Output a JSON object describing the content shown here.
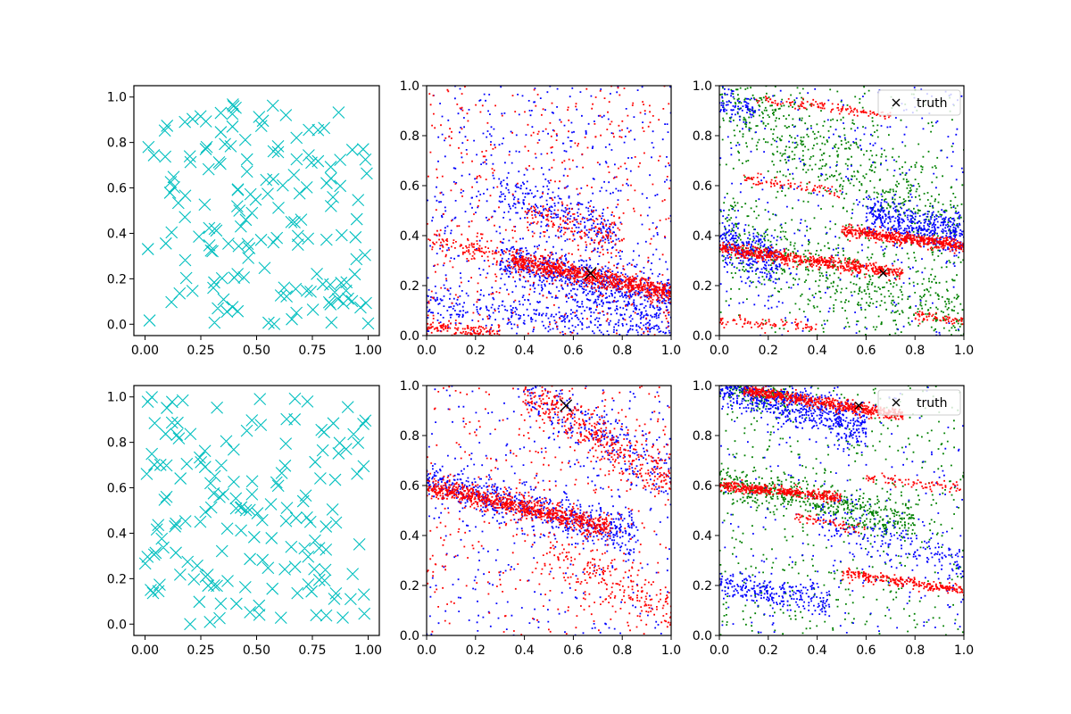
{
  "figure": {
    "colors": {
      "cyan": "#00bfbf",
      "blue": "#0000ff",
      "red": "#ff0000",
      "green": "#008000",
      "black": "#000000"
    }
  },
  "chart_data": [
    {
      "panel": "top-left",
      "type": "scatter",
      "marker": "x",
      "xlim": [
        -0.05,
        1.05
      ],
      "ylim": [
        -0.05,
        1.05
      ],
      "xticks": [
        "0.00",
        "0.25",
        "0.50",
        "0.75",
        "1.00"
      ],
      "yticks": [
        "0.0",
        "0.2",
        "0.4",
        "0.6",
        "0.8",
        "1.0"
      ],
      "series": [
        {
          "color": "#00bfbf",
          "count": 160,
          "distribution": "uniform on [0,1]x[0,1]"
        }
      ]
    },
    {
      "panel": "top-middle",
      "type": "scatter",
      "marker": "dot",
      "xlim": [
        0,
        1
      ],
      "ylim": [
        0,
        1
      ],
      "xticks": [
        "0.0",
        "0.2",
        "0.4",
        "0.6",
        "0.8",
        "1.0"
      ],
      "yticks": [
        "0.0",
        "0.2",
        "0.4",
        "0.6",
        "0.8",
        "1.0"
      ],
      "series": [
        {
          "color": "#0000ff",
          "bands": [
            {
              "x": [
                0.3,
                1.0
              ],
              "y_start": 0.3,
              "y_end": 0.13,
              "spread": 0.05,
              "n": 700
            },
            {
              "x": [
                0.0,
                1.0
              ],
              "y_start": 0.12,
              "y_end": 0.02,
              "spread": 0.04,
              "n": 350
            },
            {
              "x": [
                0.3,
                0.8
              ],
              "y_start": 0.58,
              "y_end": 0.4,
              "spread": 0.05,
              "n": 250
            }
          ],
          "background": 500
        },
        {
          "color": "#ff0000",
          "bands": [
            {
              "x": [
                0.35,
                1.0
              ],
              "y_start": 0.3,
              "y_end": 0.17,
              "spread": 0.02,
              "n": 800
            },
            {
              "x": [
                0.0,
                0.4
              ],
              "y_start": 0.38,
              "y_end": 0.3,
              "spread": 0.02,
              "n": 120
            },
            {
              "x": [
                0.0,
                0.3
              ],
              "y_start": 0.04,
              "y_end": 0.0,
              "spread": 0.015,
              "n": 150
            },
            {
              "x": [
                0.4,
                0.8
              ],
              "y_start": 0.48,
              "y_end": 0.4,
              "spread": 0.04,
              "n": 150
            }
          ],
          "background": 450
        }
      ],
      "truth": {
        "x": 0.67,
        "y": 0.25,
        "size": "large"
      }
    },
    {
      "panel": "top-right",
      "type": "scatter",
      "marker": "dot",
      "xlim": [
        0,
        1
      ],
      "ylim": [
        0,
        1
      ],
      "xticks": [
        "0.0",
        "0.2",
        "0.4",
        "0.6",
        "0.8",
        "1.0"
      ],
      "yticks": [
        "0.0",
        "0.2",
        "0.4",
        "0.6",
        "0.8",
        "1.0"
      ],
      "legend": {
        "label": "truth",
        "position": "upper right"
      },
      "series": [
        {
          "color": "#008000",
          "bands": [
            {
              "x": [
                0.0,
                1.0
              ],
              "y_start": 0.95,
              "y_end": 0.4,
              "spread": 0.1,
              "n": 600
            },
            {
              "x": [
                0.0,
                1.0
              ],
              "y_start": 0.4,
              "y_end": 0.05,
              "spread": 0.08,
              "n": 500
            }
          ],
          "background": 300
        },
        {
          "color": "#0000ff",
          "bands": [
            {
              "x": [
                0.6,
                1.0
              ],
              "y_start": 0.48,
              "y_end": 0.4,
              "spread": 0.04,
              "n": 450
            },
            {
              "x": [
                0.0,
                0.25
              ],
              "y_start": 0.38,
              "y_end": 0.28,
              "spread": 0.05,
              "n": 300
            },
            {
              "x": [
                0.0,
                0.15
              ],
              "y_start": 0.95,
              "y_end": 0.88,
              "spread": 0.03,
              "n": 80
            }
          ],
          "background": 300
        },
        {
          "color": "#ff0000",
          "bands": [
            {
              "x": [
                0.0,
                0.75
              ],
              "y_start": 0.35,
              "y_end": 0.25,
              "spread": 0.012,
              "n": 600
            },
            {
              "x": [
                0.5,
                1.0
              ],
              "y_start": 0.42,
              "y_end": 0.36,
              "spread": 0.012,
              "n": 500
            },
            {
              "x": [
                0.15,
                0.7
              ],
              "y_start": 0.95,
              "y_end": 0.88,
              "spread": 0.01,
              "n": 120
            },
            {
              "x": [
                0.1,
                0.5
              ],
              "y_start": 0.63,
              "y_end": 0.57,
              "spread": 0.01,
              "n": 80
            },
            {
              "x": [
                0.0,
                0.4
              ],
              "y_start": 0.06,
              "y_end": 0.03,
              "spread": 0.01,
              "n": 80
            },
            {
              "x": [
                0.8,
                1.0
              ],
              "y_start": 0.08,
              "y_end": 0.06,
              "spread": 0.01,
              "n": 60
            }
          ],
          "background": 0
        }
      ],
      "truth": {
        "x": 0.67,
        "y": 0.25,
        "size": "small"
      }
    },
    {
      "panel": "bottom-left",
      "type": "scatter",
      "marker": "x",
      "xlim": [
        -0.05,
        1.05
      ],
      "ylim": [
        -0.05,
        1.05
      ],
      "xticks": [
        "0.00",
        "0.25",
        "0.50",
        "0.75",
        "1.00"
      ],
      "yticks": [
        "0.0",
        "0.2",
        "0.4",
        "0.6",
        "0.8",
        "1.0"
      ],
      "series": [
        {
          "color": "#00bfbf",
          "count": 160,
          "distribution": "uniform on [0,1]x[0,1]"
        }
      ]
    },
    {
      "panel": "bottom-middle",
      "type": "scatter",
      "marker": "dot",
      "xlim": [
        0,
        1
      ],
      "ylim": [
        0,
        1
      ],
      "xticks": [
        "0.0",
        "0.2",
        "0.4",
        "0.6",
        "0.8",
        "1.0"
      ],
      "yticks": [
        "0.0",
        "0.2",
        "0.4",
        "0.6",
        "0.8",
        "1.0"
      ],
      "series": [
        {
          "color": "#0000ff",
          "bands": [
            {
              "x": [
                0.0,
                0.85
              ],
              "y_start": 0.62,
              "y_end": 0.4,
              "spread": 0.04,
              "n": 600
            },
            {
              "x": [
                0.4,
                1.0
              ],
              "y_start": 0.98,
              "y_end": 0.65,
              "spread": 0.06,
              "n": 250
            }
          ],
          "background": 350
        },
        {
          "color": "#ff0000",
          "bands": [
            {
              "x": [
                0.0,
                0.75
              ],
              "y_start": 0.6,
              "y_end": 0.43,
              "spread": 0.02,
              "n": 800
            },
            {
              "x": [
                0.4,
                1.0
              ],
              "y_start": 0.98,
              "y_end": 0.62,
              "spread": 0.05,
              "n": 400
            },
            {
              "x": [
                0.5,
                1.0
              ],
              "y_start": 0.35,
              "y_end": 0.1,
              "spread": 0.06,
              "n": 200
            }
          ],
          "background": 400
        }
      ],
      "truth": {
        "x": 0.57,
        "y": 0.92,
        "size": "large"
      }
    },
    {
      "panel": "bottom-right",
      "type": "scatter",
      "marker": "dot",
      "xlim": [
        0,
        1
      ],
      "ylim": [
        0,
        1
      ],
      "xticks": [
        "0.0",
        "0.2",
        "0.4",
        "0.6",
        "0.8",
        "1.0"
      ],
      "yticks": [
        "0.0",
        "0.2",
        "0.4",
        "0.6",
        "0.8",
        "1.0"
      ],
      "legend": {
        "label": "truth",
        "position": "upper right"
      },
      "series": [
        {
          "color": "#008000",
          "bands": [
            {
              "x": [
                0.0,
                0.8
              ],
              "y_start": 0.62,
              "y_end": 0.45,
              "spread": 0.04,
              "n": 500
            },
            {
              "x": [
                0.0,
                0.3
              ],
              "y_start": 1.0,
              "y_end": 0.95,
              "spread": 0.03,
              "n": 150
            }
          ],
          "background": 500
        },
        {
          "color": "#0000ff",
          "bands": [
            {
              "x": [
                0.0,
                0.6
              ],
              "y_start": 1.0,
              "y_end": 0.83,
              "spread": 0.04,
              "n": 650
            },
            {
              "x": [
                0.0,
                0.45
              ],
              "y_start": 0.21,
              "y_end": 0.13,
              "spread": 0.03,
              "n": 250
            },
            {
              "x": [
                0.4,
                1.0
              ],
              "y_start": 0.45,
              "y_end": 0.3,
              "spread": 0.05,
              "n": 200
            }
          ],
          "background": 250
        },
        {
          "color": "#ff0000",
          "bands": [
            {
              "x": [
                0.1,
                0.75
              ],
              "y_start": 0.98,
              "y_end": 0.88,
              "spread": 0.012,
              "n": 600
            },
            {
              "x": [
                0.0,
                0.5
              ],
              "y_start": 0.6,
              "y_end": 0.55,
              "spread": 0.01,
              "n": 400
            },
            {
              "x": [
                0.5,
                1.0
              ],
              "y_start": 0.25,
              "y_end": 0.18,
              "spread": 0.01,
              "n": 250
            },
            {
              "x": [
                0.6,
                1.0
              ],
              "y_start": 0.63,
              "y_end": 0.59,
              "spread": 0.01,
              "n": 80
            },
            {
              "x": [
                0.3,
                0.6
              ],
              "y_start": 0.48,
              "y_end": 0.42,
              "spread": 0.01,
              "n": 60
            }
          ],
          "background": 0
        }
      ],
      "truth": {
        "x": 0.57,
        "y": 0.92,
        "size": "small"
      }
    }
  ]
}
